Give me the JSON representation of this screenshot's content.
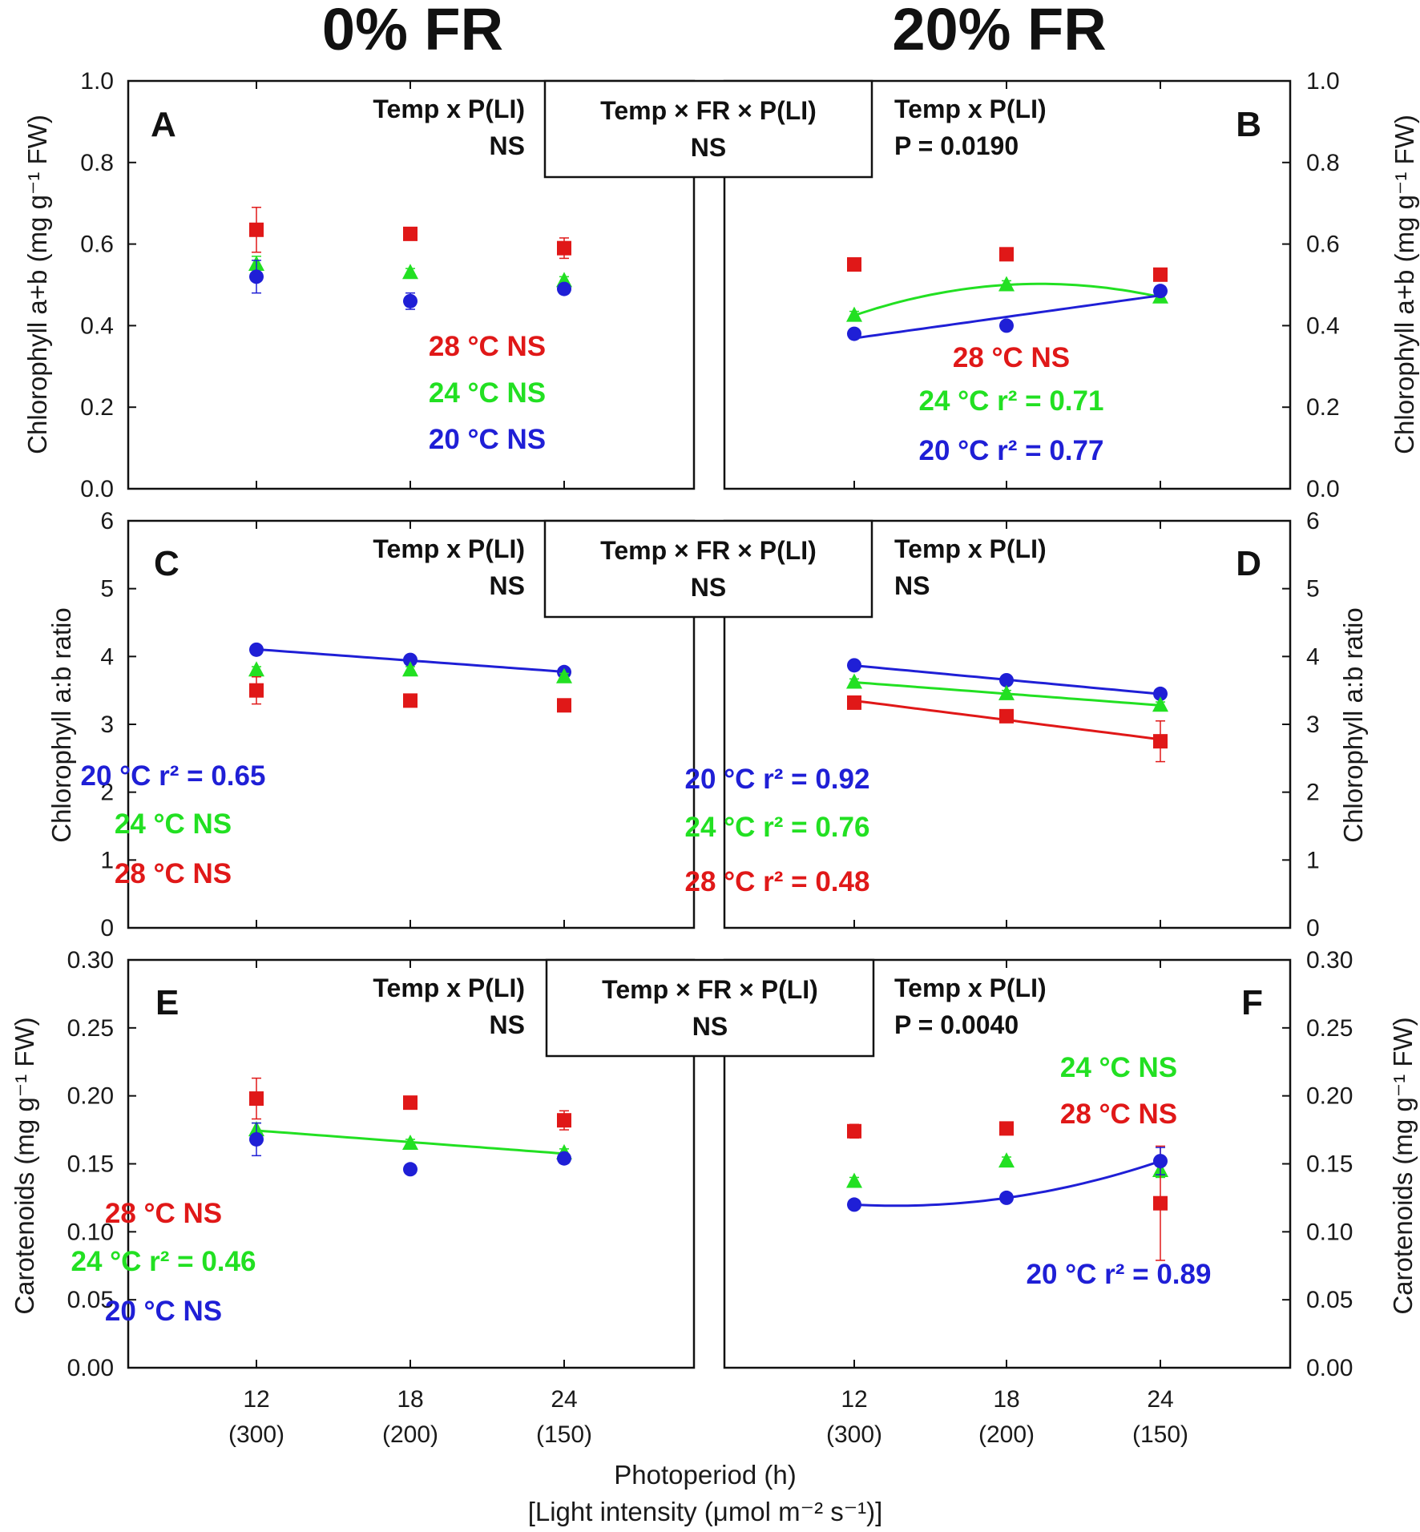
{
  "titles": {
    "left": "0% FR",
    "right": "20% FR"
  },
  "colors": {
    "20": "#1f1fd6",
    "24": "#22e022",
    "28": "#e01818"
  },
  "x_axis": {
    "ticks": [
      "12",
      "18",
      "24"
    ],
    "subticks": [
      "(300)",
      "(200)",
      "(150)"
    ],
    "label_line1": "Photoperiod (h)",
    "label_line2": "[Light intensity (μmol m⁻² s⁻¹)]"
  },
  "rows": [
    {
      "ylabel": "Chlorophyll a+b (mg g⁻¹ FW)",
      "yticks": [
        "0.0",
        "0.2",
        "0.4",
        "0.6",
        "0.8",
        "1.0"
      ],
      "center_box": {
        "line1": "Temp × FR × P(LI)",
        "line2": "NS"
      }
    },
    {
      "ylabel": "Chlorophyll a:b ratio",
      "yticks": [
        "0",
        "1",
        "2",
        "3",
        "4",
        "5",
        "6"
      ],
      "center_box": {
        "line1": "Temp × FR × P(LI)",
        "line2": "NS"
      }
    },
    {
      "ylabel": "Carotenoids (mg g⁻¹ FW)",
      "yticks": [
        "0.00",
        "0.05",
        "0.10",
        "0.15",
        "0.20",
        "0.25",
        "0.30"
      ],
      "center_box": {
        "line1": "Temp × FR × P(LI)",
        "line2": "NS"
      }
    }
  ],
  "chart_data": [
    {
      "panel": "A",
      "type": "scatter",
      "title": "0% FR",
      "ylabel": "Chlorophyll a+b (mg g⁻¹ FW)",
      "ylim": [
        0,
        1.0
      ],
      "x": [
        12,
        18,
        24
      ],
      "x_secondary": [
        300,
        200,
        150
      ],
      "stat_line1": "Temp x P(LI)",
      "stat_line2": "NS",
      "series": [
        {
          "name": "28 °C",
          "key": "28",
          "marker": "square",
          "values": [
            0.635,
            0.625,
            0.59
          ],
          "errors": [
            0.055,
            0.01,
            0.025
          ],
          "fit": null,
          "annotation": "28 °C  NS"
        },
        {
          "name": "24 °C",
          "key": "24",
          "marker": "triangle",
          "values": [
            0.55,
            0.53,
            0.51
          ],
          "errors": [
            0.02,
            0.01,
            0.01
          ],
          "fit": null,
          "annotation": "24 °C  NS"
        },
        {
          "name": "20 °C",
          "key": "20",
          "marker": "circle",
          "values": [
            0.52,
            0.46,
            0.49
          ],
          "errors": [
            0.04,
            0.02,
            0.01
          ],
          "fit": null,
          "annotation": "20 °C  NS"
        }
      ]
    },
    {
      "panel": "B",
      "type": "scatter",
      "title": "20% FR",
      "ylabel": "Chlorophyll a+b (mg g⁻¹ FW)",
      "ylim": [
        0,
        1.0
      ],
      "x": [
        12,
        18,
        24
      ],
      "x_secondary": [
        300,
        200,
        150
      ],
      "stat_line1": "Temp x P(LI)",
      "stat_line2": "P = 0.0190",
      "series": [
        {
          "name": "28 °C",
          "key": "28",
          "marker": "square",
          "values": [
            0.55,
            0.575,
            0.525
          ],
          "errors": [
            0.015,
            0.01,
            0.01
          ],
          "fit": null,
          "annotation": "28 °C  NS"
        },
        {
          "name": "24 °C",
          "key": "24",
          "marker": "triangle",
          "values": [
            0.425,
            0.5,
            0.47
          ],
          "errors": [
            0.01,
            0.01,
            0.01
          ],
          "fit": "quadratic",
          "annotation": "24 °C  r² = 0.71"
        },
        {
          "name": "20 °C",
          "key": "20",
          "marker": "circle",
          "values": [
            0.38,
            0.4,
            0.485
          ],
          "errors": [
            0.01,
            0.01,
            0.01
          ],
          "fit": "linear",
          "annotation": "20 °C  r² = 0.77"
        }
      ]
    },
    {
      "panel": "C",
      "type": "scatter",
      "ylabel": "Chlorophyll a:b ratio",
      "ylim": [
        0,
        6
      ],
      "x": [
        12,
        18,
        24
      ],
      "x_secondary": [
        300,
        200,
        150
      ],
      "stat_line1": "Temp x P(LI)",
      "stat_line2": "NS",
      "series": [
        {
          "name": "20 °C",
          "key": "20",
          "marker": "circle",
          "values": [
            4.1,
            3.95,
            3.77
          ],
          "errors": [
            0.05,
            0.05,
            0.05
          ],
          "fit": "linear",
          "annotation": "20 °C  r² = 0.65"
        },
        {
          "name": "24 °C",
          "key": "24",
          "marker": "triangle",
          "values": [
            3.8,
            3.8,
            3.7
          ],
          "errors": [
            0.05,
            0.05,
            0.05
          ],
          "fit": null,
          "annotation": "24 °C  NS"
        },
        {
          "name": "28 °C",
          "key": "28",
          "marker": "square",
          "values": [
            3.5,
            3.35,
            3.28
          ],
          "errors": [
            0.2,
            0.05,
            0.05
          ],
          "fit": null,
          "annotation": "28 °C  NS"
        }
      ]
    },
    {
      "panel": "D",
      "type": "scatter",
      "ylabel": "Chlorophyll a:b ratio",
      "ylim": [
        0,
        6
      ],
      "x": [
        12,
        18,
        24
      ],
      "x_secondary": [
        300,
        200,
        150
      ],
      "stat_line1": "Temp x P(LI)",
      "stat_line2": "NS",
      "series": [
        {
          "name": "20 °C",
          "key": "20",
          "marker": "circle",
          "values": [
            3.87,
            3.65,
            3.45
          ],
          "errors": [
            0.05,
            0.05,
            0.05
          ],
          "fit": "linear",
          "annotation": "20 °C  r² = 0.92"
        },
        {
          "name": "24 °C",
          "key": "24",
          "marker": "triangle",
          "values": [
            3.62,
            3.45,
            3.28
          ],
          "errors": [
            0.05,
            0.05,
            0.05
          ],
          "fit": "linear",
          "annotation": "24 °C  r² = 0.76"
        },
        {
          "name": "28 °C",
          "key": "28",
          "marker": "square",
          "values": [
            3.32,
            3.12,
            2.75
          ],
          "errors": [
            0.05,
            0.05,
            0.3
          ],
          "fit": "linear",
          "annotation": "28 °C r² = 0.48"
        }
      ]
    },
    {
      "panel": "E",
      "type": "scatter",
      "ylabel": "Carotenoids (mg g⁻¹ FW)",
      "ylim": [
        0,
        0.3
      ],
      "x": [
        12,
        18,
        24
      ],
      "x_secondary": [
        300,
        200,
        150
      ],
      "stat_line1": "Temp x P(LI)",
      "stat_line2": "NS",
      "series": [
        {
          "name": "28 °C",
          "key": "28",
          "marker": "square",
          "values": [
            0.198,
            0.195,
            0.182
          ],
          "errors": [
            0.015,
            0.003,
            0.007
          ],
          "fit": null,
          "annotation": "28 °C  NS"
        },
        {
          "name": "24 °C",
          "key": "24",
          "marker": "triangle",
          "values": [
            0.175,
            0.165,
            0.158
          ],
          "errors": [
            0.005,
            0.003,
            0.003
          ],
          "fit": "linear",
          "annotation": "24 °C  r² = 0.46"
        },
        {
          "name": "20 °C",
          "key": "20",
          "marker": "circle",
          "values": [
            0.168,
            0.146,
            0.154
          ],
          "errors": [
            0.012,
            0.003,
            0.003
          ],
          "fit": null,
          "annotation": "20 °C  NS"
        }
      ]
    },
    {
      "panel": "F",
      "type": "scatter",
      "ylabel": "Carotenoids (mg g⁻¹ FW)",
      "ylim": [
        0,
        0.3
      ],
      "x": [
        12,
        18,
        24
      ],
      "x_secondary": [
        300,
        200,
        150
      ],
      "stat_line1": "Temp x P(LI)",
      "stat_line2": "P = 0.0040",
      "series": [
        {
          "name": "24 °C",
          "key": "24",
          "marker": "triangle",
          "values": [
            0.137,
            0.152,
            0.145
          ],
          "errors": [
            0.003,
            0.003,
            0.005
          ],
          "fit": null,
          "annotation": "24 °C  NS"
        },
        {
          "name": "28 °C",
          "key": "28",
          "marker": "square",
          "values": [
            0.174,
            0.176,
            0.121
          ],
          "errors": [
            0.005,
            0.003,
            0.042
          ],
          "fit": null,
          "annotation": "28 °C  NS"
        },
        {
          "name": "20 °C",
          "key": "20",
          "marker": "circle",
          "values": [
            0.12,
            0.125,
            0.152
          ],
          "errors": [
            0.003,
            0.003,
            0.01
          ],
          "fit": "quadratic",
          "annotation": "20 °C  r² = 0.89"
        }
      ]
    }
  ]
}
